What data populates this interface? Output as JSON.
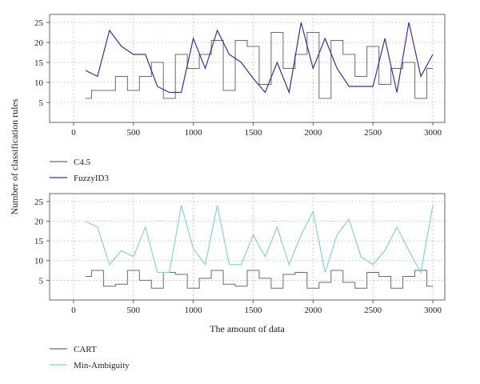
{
  "chart_data": {
    "ylabel": "Number of classification rules",
    "xlabel": "The amount of data",
    "panels": [
      {
        "type": "line",
        "xlim": [
          -200,
          3100
        ],
        "ylim": [
          0,
          27
        ],
        "xticks": [
          0,
          500,
          1000,
          1500,
          2000,
          2500,
          3000
        ],
        "yticks": [
          5,
          10,
          15,
          20,
          25
        ],
        "grid": "dotted",
        "series": [
          {
            "name": "C4.5",
            "color": "#6b6b6b",
            "style": "step",
            "x": [
              100,
              150,
              200,
              250,
              300,
              350,
              400,
              450,
              500,
              550,
              600,
              650,
              700,
              750,
              800,
              850,
              900,
              950,
              1000,
              1050,
              1100,
              1150,
              1200,
              1250,
              1300,
              1350,
              1400,
              1450,
              1500,
              1550,
              1600,
              1650,
              1700,
              1750,
              1800,
              1850,
              1900,
              1950,
              2000,
              2050,
              2100,
              2150,
              2200,
              2250,
              2300,
              2350,
              2400,
              2450,
              2500,
              2550,
              2600,
              2650,
              2700,
              2750,
              2800,
              2850,
              2900,
              2950,
              3000
            ],
            "y": [
              6,
              8,
              8,
              8,
              8,
              11.5,
              11.5,
              8,
              8,
              11.5,
              11.5,
              15,
              15,
              6,
              6,
              17,
              17,
              13.5,
              13.5,
              17,
              17,
              20.5,
              20.5,
              8,
              8,
              20.5,
              20.5,
              19,
              19,
              9.5,
              9.5,
              22.5,
              22.5,
              13.5,
              13.5,
              17,
              17,
              22.5,
              22.5,
              6,
              6,
              20.5,
              20.5,
              17,
              17,
              11.5,
              11.5,
              19,
              19,
              9.5,
              9.5,
              13.5,
              13.5,
              15,
              15,
              6,
              6,
              13.5,
              13.5
            ]
          },
          {
            "name": "FuzzyID3",
            "color": "#4a2a8c",
            "style": "line",
            "x": [
              100,
              200,
              300,
              400,
              500,
              600,
              700,
              800,
              900,
              1000,
              1100,
              1200,
              1300,
              1400,
              1500,
              1600,
              1700,
              1800,
              1900,
              2000,
              2100,
              2200,
              2300,
              2400,
              2500,
              2600,
              2700,
              2800,
              2900,
              3000
            ],
            "y": [
              13,
              11.5,
              23,
              19,
              17,
              17,
              9,
              7.5,
              7.5,
              21,
              13.5,
              23,
              17,
              15,
              11,
              7.5,
              15,
              7.5,
              25,
              13.5,
              21,
              13.5,
              9,
              9,
              9,
              21,
              7.5,
              25,
              11.5,
              17
            ]
          }
        ]
      },
      {
        "type": "line",
        "xlim": [
          -200,
          3100
        ],
        "ylim": [
          0,
          27
        ],
        "xticks": [
          0,
          500,
          1000,
          1500,
          2000,
          2500,
          3000
        ],
        "yticks": [
          5,
          10,
          15,
          20,
          25
        ],
        "grid": "dotted",
        "series": [
          {
            "name": "CART",
            "color": "#6b6b6b",
            "style": "step",
            "x": [
              100,
              150,
              200,
              250,
              300,
              350,
              400,
              450,
              500,
              550,
              600,
              650,
              700,
              750,
              800,
              850,
              900,
              950,
              1000,
              1050,
              1100,
              1150,
              1200,
              1250,
              1300,
              1350,
              1400,
              1450,
              1500,
              1550,
              1600,
              1650,
              1700,
              1750,
              1800,
              1850,
              1900,
              1950,
              2000,
              2050,
              2100,
              2150,
              2200,
              2250,
              2300,
              2350,
              2400,
              2450,
              2500,
              2550,
              2600,
              2650,
              2700,
              2750,
              2800,
              2850,
              2900,
              2950,
              3000
            ],
            "y": [
              6,
              7.5,
              7.5,
              3.5,
              3.5,
              4,
              4,
              7.5,
              7.5,
              5,
              5,
              3,
              3,
              7,
              7,
              6.5,
              6.5,
              3,
              3,
              5.5,
              5.5,
              7.5,
              7.5,
              4,
              4,
              3.5,
              3.5,
              7.5,
              7.5,
              5.5,
              5.5,
              3,
              3,
              6.5,
              6.5,
              7,
              7,
              3,
              3,
              4.5,
              4.5,
              7.5,
              7.5,
              4.5,
              4.5,
              3,
              3,
              7,
              7,
              6,
              6,
              3,
              3,
              6,
              6,
              7.5,
              7.5,
              3.5,
              3.5
            ]
          },
          {
            "name": "Min-Ambiguity",
            "color": "#8fd0c8",
            "style": "line",
            "x": [
              100,
              200,
              300,
              400,
              500,
              600,
              700,
              800,
              900,
              1000,
              1100,
              1200,
              1300,
              1400,
              1500,
              1600,
              1700,
              1800,
              1900,
              2000,
              2100,
              2200,
              2300,
              2400,
              2500,
              2600,
              2700,
              2800,
              2900,
              3000
            ],
            "y": [
              20,
              18.5,
              9,
              12.5,
              11,
              18.5,
              7,
              7,
              24,
              13,
              9,
              24,
              9,
              9,
              16.5,
              11,
              18.5,
              9,
              16.5,
              22.5,
              7,
              16.5,
              20.5,
              11,
              9,
              12.5,
              18.5,
              12.5,
              7,
              24
            ]
          }
        ]
      }
    ]
  }
}
